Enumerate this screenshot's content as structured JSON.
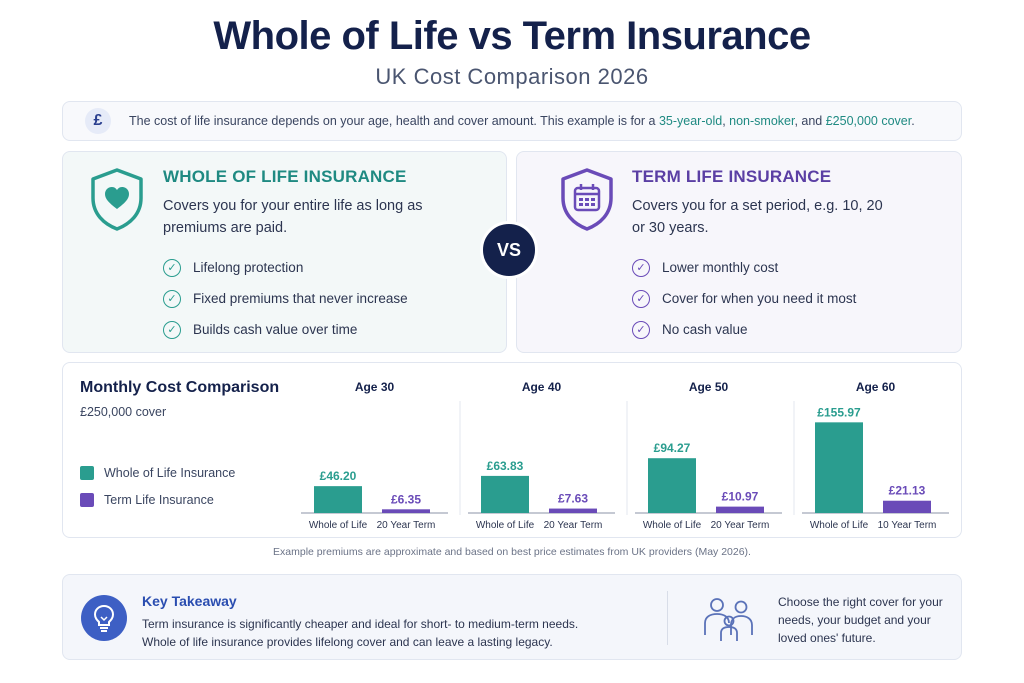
{
  "title": "Whole of Life vs Term Insurance",
  "subtitle": "UK Cost Comparison 2026",
  "info": {
    "icon": "pound-icon",
    "text_before": "The cost of life insurance depends on your age, health and cover amount. This example is for a ",
    "highlight_age": "35-year-old",
    "sep1": ", ",
    "highlight_smoker": "non-smoker",
    "sep2": ", and ",
    "highlight_cover": "£250,000 cover",
    "text_end": "."
  },
  "whole": {
    "title": "WHOLE OF LIFE INSURANCE",
    "icon": "shield-heart-icon",
    "description": "Covers you for your entire life as long as premiums are paid.",
    "features": [
      "Lifelong protection",
      "Fixed premiums that never increase",
      "Builds cash value over time"
    ],
    "color": "#2a9d8f"
  },
  "vs_label": "VS",
  "term": {
    "title": "TERM LIFE INSURANCE",
    "icon": "shield-calendar-icon",
    "description": "Covers you for a set period, e.g. 10, 20 or 30 years.",
    "features": [
      "Lower monthly cost",
      "Cover for when you need it most",
      "No cash value"
    ],
    "color": "#6a4bb8"
  },
  "chart": {
    "title": "Monthly Cost Comparison",
    "subtitle": "£250,000 cover",
    "legend": [
      {
        "label": "Whole of Life Insurance",
        "color": "#2a9d8f"
      },
      {
        "label": "Term Life Insurance",
        "color": "#6a4bb8"
      }
    ]
  },
  "chart_data": {
    "type": "bar",
    "groups": [
      {
        "title": "Age 30",
        "categories": [
          "Whole of Life",
          "20 Year Term"
        ],
        "values": [
          46.2,
          6.35
        ],
        "labels": [
          "£46.20",
          "£6.35"
        ]
      },
      {
        "title": "Age 40",
        "categories": [
          "Whole of Life",
          "20 Year Term"
        ],
        "values": [
          63.83,
          7.63
        ],
        "labels": [
          "£63.83",
          "£7.63"
        ]
      },
      {
        "title": "Age 50",
        "categories": [
          "Whole of Life",
          "20 Year Term"
        ],
        "values": [
          94.27,
          10.97
        ],
        "labels": [
          "£94.27",
          "£10.97"
        ]
      },
      {
        "title": "Age 60",
        "categories": [
          "Whole of Life",
          "10 Year Term"
        ],
        "values": [
          155.97,
          21.13
        ],
        "labels": [
          "£155.97",
          "£21.13"
        ]
      }
    ],
    "colors": [
      "#2a9d8f",
      "#6a4bb8"
    ],
    "ylim": [
      0,
      160
    ]
  },
  "footnote": "Example premiums are approximate and based on best price estimates from UK providers (May 2026).",
  "takeaway": {
    "icon": "lightbulb-icon",
    "title": "Key Takeaway",
    "line1": "Term insurance is significantly cheaper and ideal for short- to medium-term needs.",
    "line2": "Whole of life insurance provides lifelong cover and can leave a lasting legacy.",
    "family_icon": "family-icon",
    "right_text": "Choose the right cover for your needs, your budget and your loved ones' future."
  }
}
